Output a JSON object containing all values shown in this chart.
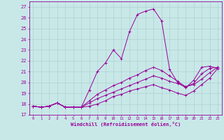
{
  "xlabel": "Windchill (Refroidissement éolien,°C)",
  "xlim": [
    -0.5,
    23.5
  ],
  "ylim": [
    17,
    27.5
  ],
  "yticks": [
    17,
    18,
    19,
    20,
    21,
    22,
    23,
    24,
    25,
    26,
    27
  ],
  "xticks": [
    0,
    1,
    2,
    3,
    4,
    5,
    6,
    7,
    8,
    9,
    10,
    11,
    12,
    13,
    14,
    15,
    16,
    17,
    18,
    19,
    20,
    21,
    22,
    23
  ],
  "bg_color": "#c8e8e8",
  "line_color": "#990099",
  "grid_color": "#aacccc",
  "curves": [
    {
      "x": [
        0,
        1,
        2,
        3,
        4,
        5,
        6,
        7,
        8,
        9,
        10,
        11,
        12,
        13,
        14,
        15,
        16,
        17,
        18,
        19,
        20,
        21,
        22,
        23
      ],
      "y": [
        17.8,
        17.7,
        17.8,
        18.1,
        17.7,
        17.7,
        17.7,
        19.3,
        21.0,
        21.8,
        23.0,
        22.2,
        24.7,
        26.3,
        26.6,
        26.8,
        25.7,
        21.2,
        20.0,
        19.5,
        20.2,
        21.4,
        21.5,
        21.3
      ]
    },
    {
      "x": [
        0,
        1,
        2,
        3,
        4,
        5,
        6,
        7,
        8,
        9,
        10,
        11,
        12,
        13,
        14,
        15,
        16,
        17,
        18,
        19,
        20,
        21,
        22,
        23
      ],
      "y": [
        17.8,
        17.7,
        17.8,
        18.1,
        17.7,
        17.7,
        17.7,
        18.3,
        18.9,
        19.3,
        19.7,
        20.0,
        20.4,
        20.7,
        21.1,
        21.4,
        21.1,
        20.6,
        20.1,
        19.6,
        19.9,
        20.8,
        21.3,
        21.4
      ]
    },
    {
      "x": [
        0,
        1,
        2,
        3,
        4,
        5,
        6,
        7,
        8,
        9,
        10,
        11,
        12,
        13,
        14,
        15,
        16,
        17,
        18,
        19,
        20,
        21,
        22,
        23
      ],
      "y": [
        17.8,
        17.7,
        17.8,
        18.1,
        17.7,
        17.7,
        17.7,
        18.1,
        18.5,
        18.8,
        19.1,
        19.4,
        19.7,
        20.0,
        20.3,
        20.6,
        20.4,
        20.1,
        19.9,
        19.6,
        19.8,
        20.3,
        20.9,
        21.4
      ]
    },
    {
      "x": [
        0,
        1,
        2,
        3,
        4,
        5,
        6,
        7,
        8,
        9,
        10,
        11,
        12,
        13,
        14,
        15,
        16,
        17,
        18,
        19,
        20,
        21,
        22,
        23
      ],
      "y": [
        17.8,
        17.7,
        17.8,
        18.1,
        17.7,
        17.7,
        17.7,
        17.8,
        18.0,
        18.3,
        18.7,
        18.9,
        19.2,
        19.4,
        19.6,
        19.8,
        19.5,
        19.3,
        19.0,
        18.8,
        19.2,
        19.8,
        20.4,
        21.3
      ]
    }
  ]
}
